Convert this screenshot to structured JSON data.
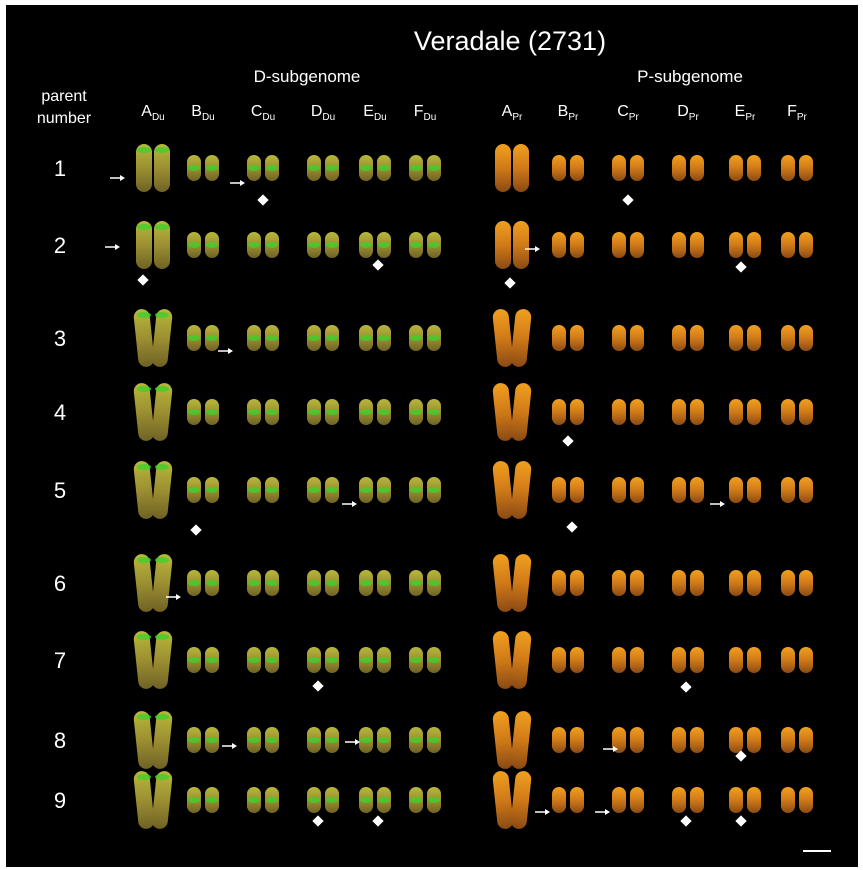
{
  "title": "Veradale (2731)",
  "subgenomes": [
    "D-subgenome",
    "P-subgenome"
  ],
  "row_header": [
    "parent",
    "number"
  ],
  "columns": [
    {
      "letter": "A",
      "sub": "Du"
    },
    {
      "letter": "B",
      "sub": "Du"
    },
    {
      "letter": "C",
      "sub": "Du"
    },
    {
      "letter": "D",
      "sub": "Du"
    },
    {
      "letter": "E",
      "sub": "Du"
    },
    {
      "letter": "F",
      "sub": "Du"
    },
    {
      "letter": "A",
      "sub": "Pr"
    },
    {
      "letter": "B",
      "sub": "Pr"
    },
    {
      "letter": "C",
      "sub": "Pr"
    },
    {
      "letter": "D",
      "sub": "Pr"
    },
    {
      "letter": "E",
      "sub": "Pr"
    },
    {
      "letter": "F",
      "sub": "Pr"
    }
  ],
  "rows": [
    "1",
    "2",
    "3",
    "4",
    "5",
    "6",
    "7",
    "8",
    "9"
  ]
}
